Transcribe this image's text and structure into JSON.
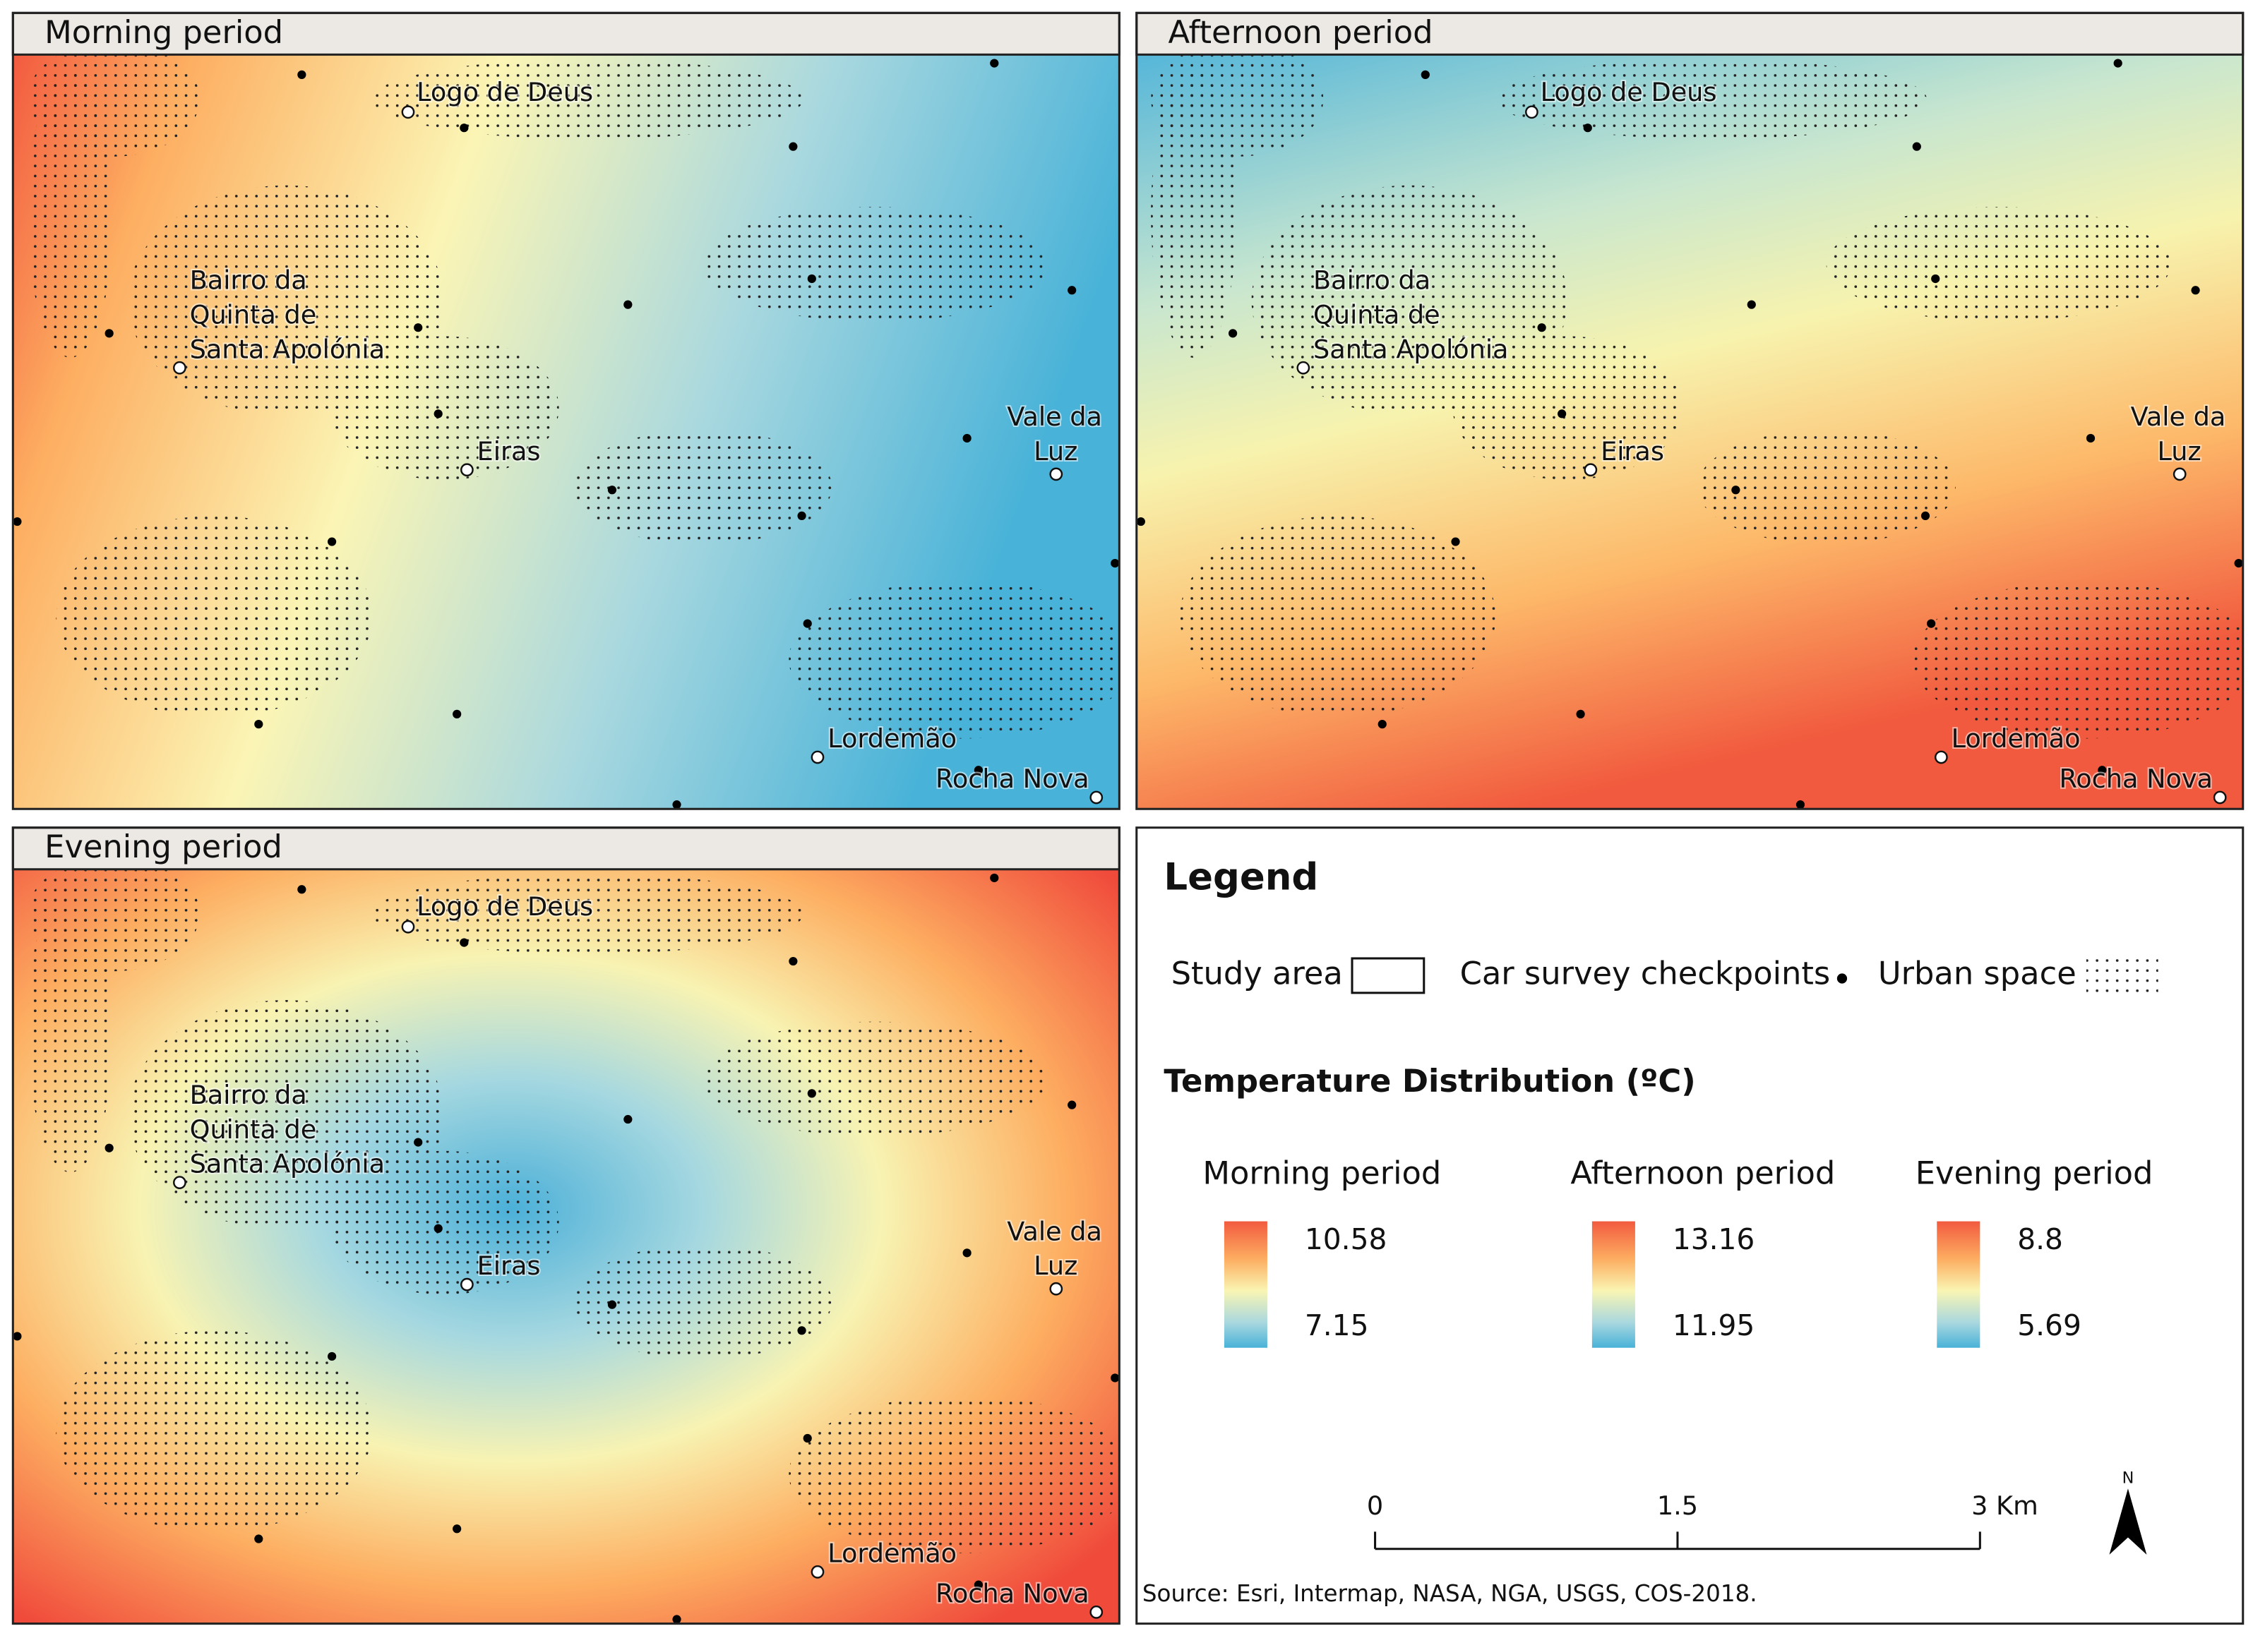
{
  "panels": [
    {
      "title": "Morning period"
    },
    {
      "title": "Afternoon period"
    },
    {
      "title": "Evening period"
    }
  ],
  "places": [
    [
      "Logo de Deus"
    ],
    [
      "Bairro da",
      "Quinta de",
      "Santa Apolónia"
    ],
    [
      "Eiras"
    ],
    [
      "Vale da",
      "Luz"
    ],
    [
      "Lordemão"
    ],
    [
      "Rocha Nova"
    ]
  ],
  "legend": {
    "title": "Legend",
    "items": [
      "Study area",
      "Car survey checkpoints",
      "Urban space"
    ],
    "temperature_title": "Temperature Distribution (ºC)",
    "ramps": [
      {
        "name": "Morning period",
        "max": 10.58,
        "min": 7.15
      },
      {
        "name": "Afternoon period",
        "max": 13.16,
        "min": 11.95
      },
      {
        "name": "Evening period",
        "max": 8.8,
        "min": 5.69
      }
    ]
  },
  "scale_bar": {
    "ticks": [
      0,
      1.5,
      {
        "value": 3,
        "label": "3 Km"
      }
    ]
  },
  "north": "N",
  "source": "Source: Esri, Intermap, NASA, NGA, USGS, COS-2018."
}
